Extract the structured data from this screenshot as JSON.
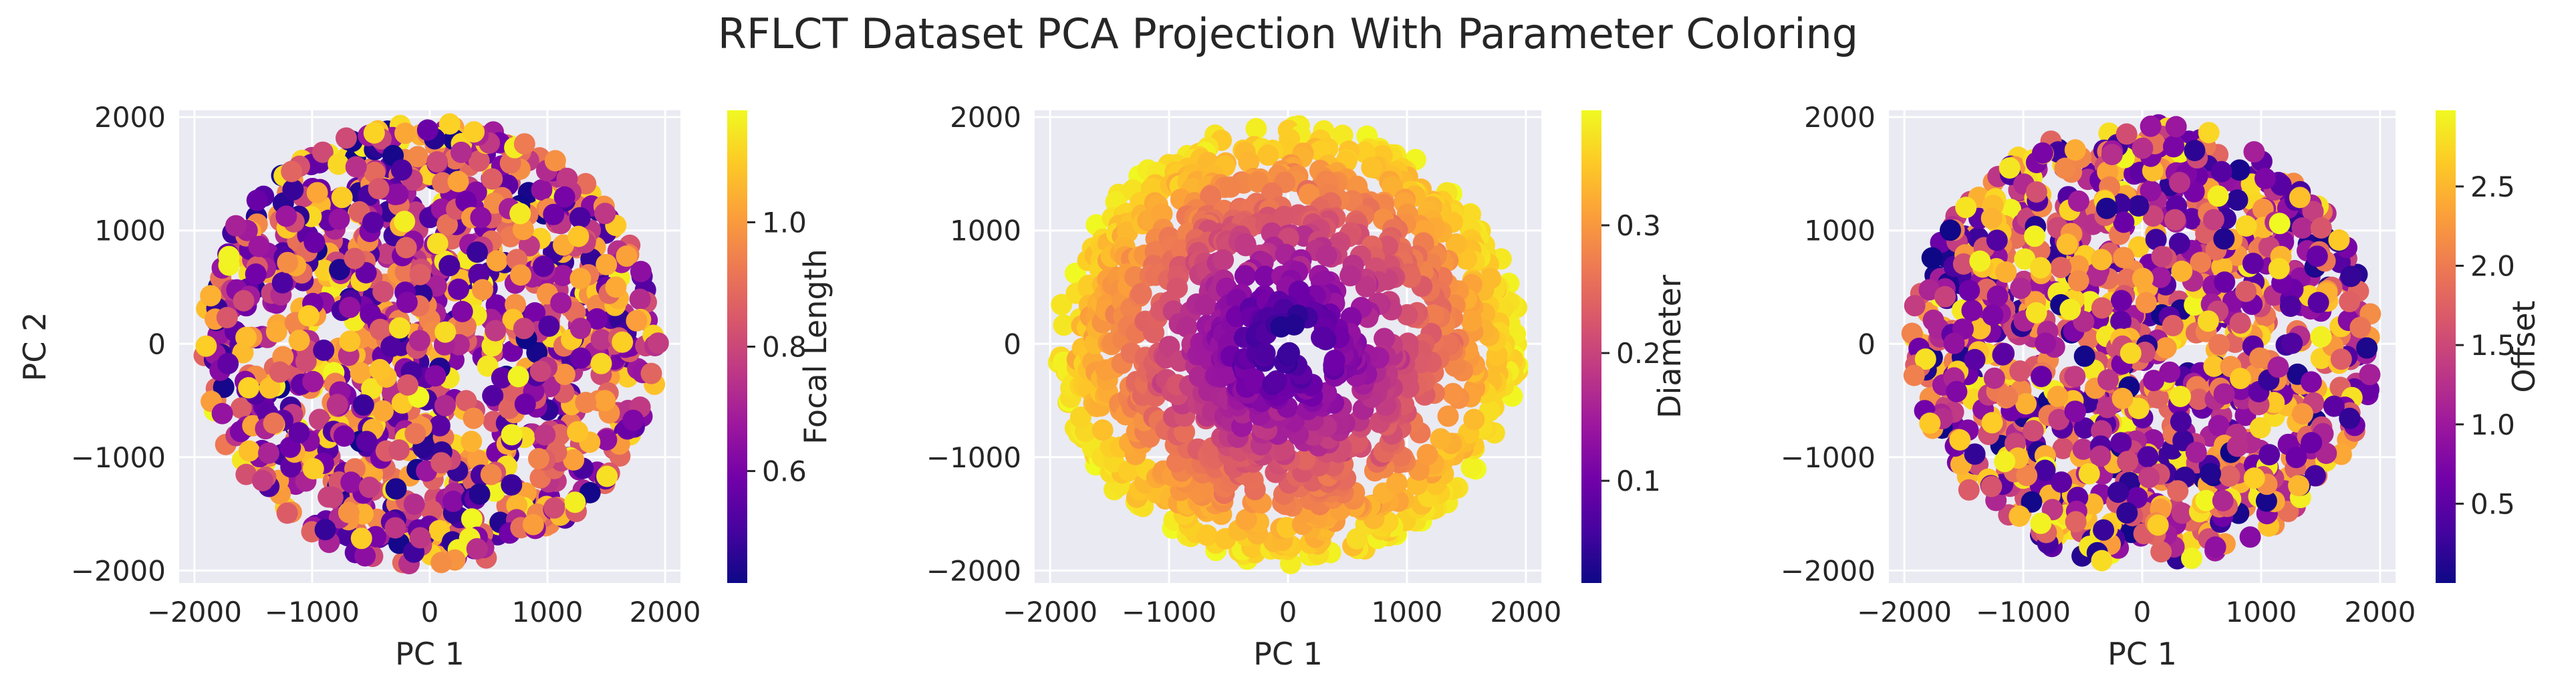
{
  "title": "RFLCT Dataset PCA Projection With Parameter Coloring",
  "style": {
    "plot_background": "#eaeaf2",
    "grid_color": "#ffffff",
    "text_color": "#262626",
    "colormap": "plasma",
    "plasma_stops": [
      "#0d0887",
      "#46039f",
      "#7201a8",
      "#9c179e",
      "#bd3786",
      "#d8576b",
      "#ed7953",
      "#fb9f3a",
      "#fdca26",
      "#f0f921"
    ]
  },
  "chart_data": [
    {
      "type": "scatter",
      "xlabel": "PC 1",
      "ylabel": "PC 2",
      "xlim": [
        -2130,
        2130
      ],
      "ylim": [
        -2110,
        2060
      ],
      "xticks": [
        -2000,
        -1000,
        0,
        1000,
        2000
      ],
      "xtick_labels": [
        "−2000",
        "−1000",
        "0",
        "1000",
        "2000"
      ],
      "yticks": [
        -2000,
        -1000,
        0,
        1000,
        2000
      ],
      "ytick_labels": [
        "−2000",
        "−1000",
        "0",
        "1000",
        "2000"
      ],
      "grid": true,
      "point_cloud": {
        "center": [
          0,
          0
        ],
        "radius": 1950,
        "approx_points": 1200
      },
      "color_mapping": "random",
      "colorbar": {
        "label": "Focal Length",
        "range": [
          0.42,
          1.18
        ],
        "ticks": [
          0.6,
          0.8,
          1.0
        ],
        "tick_labels": [
          "0.6",
          "0.8",
          "1.0"
        ]
      }
    },
    {
      "type": "scatter",
      "xlabel": "PC 1",
      "ylabel": "",
      "xlim": [
        -2130,
        2130
      ],
      "ylim": [
        -2110,
        2060
      ],
      "xticks": [
        -2000,
        -1000,
        0,
        1000,
        2000
      ],
      "xtick_labels": [
        "−2000",
        "−1000",
        "0",
        "1000",
        "2000"
      ],
      "yticks": [
        -2000,
        -1000,
        0,
        1000,
        2000
      ],
      "ytick_labels": [
        "−2000",
        "−1000",
        "0",
        "1000",
        "2000"
      ],
      "grid": true,
      "point_cloud": {
        "center": [
          0,
          0
        ],
        "radius": 1950,
        "approx_points": 1200
      },
      "color_mapping": "radial",
      "colorbar": {
        "label": "Diameter",
        "range": [
          0.02,
          0.39
        ],
        "ticks": [
          0.1,
          0.2,
          0.3
        ],
        "tick_labels": [
          "0.1",
          "0.2",
          "0.3"
        ]
      }
    },
    {
      "type": "scatter",
      "xlabel": "PC 1",
      "ylabel": "",
      "xlim": [
        -2130,
        2130
      ],
      "ylim": [
        -2110,
        2060
      ],
      "xticks": [
        -2000,
        -1000,
        0,
        1000,
        2000
      ],
      "xtick_labels": [
        "−2000",
        "−1000",
        "0",
        "1000",
        "2000"
      ],
      "yticks": [
        -2000,
        -1000,
        0,
        1000,
        2000
      ],
      "ytick_labels": [
        "−2000",
        "−1000",
        "0",
        "1000",
        "2000"
      ],
      "grid": true,
      "point_cloud": {
        "center": [
          0,
          0
        ],
        "radius": 1950,
        "approx_points": 1200
      },
      "color_mapping": "random",
      "colorbar": {
        "label": "Offset",
        "range": [
          0.0,
          2.98
        ],
        "ticks": [
          0.5,
          1.0,
          1.5,
          2.0,
          2.5
        ],
        "tick_labels": [
          "0.5",
          "1.0",
          "1.5",
          "2.0",
          "2.5"
        ]
      }
    }
  ]
}
